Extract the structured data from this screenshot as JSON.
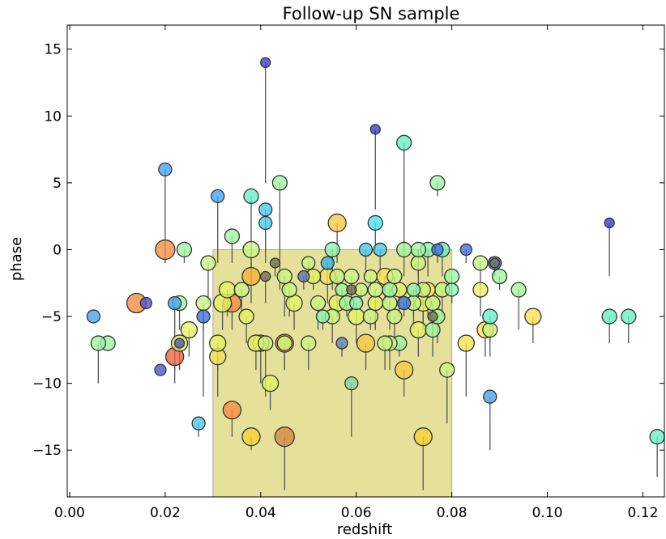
{
  "chart_data": {
    "type": "scatter",
    "title": "Follow-up SN sample",
    "xlabel": "redshift",
    "ylabel": "phase",
    "xlim": [
      -0.0005,
      0.1245
    ],
    "ylim": [
      -18.5,
      16.8
    ],
    "xticks": [
      0.0,
      0.02,
      0.04,
      0.06,
      0.08,
      0.1,
      0.12
    ],
    "xtick_labels": [
      "0.00",
      "0.02",
      "0.04",
      "0.06",
      "0.08",
      "0.10",
      "0.12"
    ],
    "yticks": [
      15,
      10,
      5,
      0,
      -5,
      -10,
      -15
    ],
    "ytick_labels": [
      "15",
      "10",
      "5",
      "0",
      "−5",
      "−10",
      "−15"
    ],
    "grid": false,
    "shaded_region": {
      "x": [
        0.03,
        0.08
      ],
      "y": [
        -18.5,
        0
      ],
      "color": "#e0dc8a"
    },
    "marker_edge_color": "#333333",
    "line_color": "#555555",
    "points": [
      {
        "x": 0.041,
        "y": 14,
        "y_low": 5,
        "r": 6,
        "c": "#3a3ad0"
      },
      {
        "x": 0.064,
        "y": 9,
        "y_low": 3,
        "r": 6,
        "c": "#3a3ad0"
      },
      {
        "x": 0.07,
        "y": 8,
        "y_low": 0,
        "r": 9,
        "c": "#62f0c4"
      },
      {
        "x": 0.02,
        "y": 6,
        "y_low": -1,
        "r": 8,
        "c": "#45a0f0"
      },
      {
        "x": 0.044,
        "y": 5,
        "y_low": -3,
        "r": 9,
        "c": "#9cf59c"
      },
      {
        "x": 0.077,
        "y": 5,
        "y_low": 4,
        "r": 9,
        "c": "#9cf59c"
      },
      {
        "x": 0.031,
        "y": 4,
        "y_low": -1,
        "r": 8,
        "c": "#45a0f0"
      },
      {
        "x": 0.038,
        "y": 4,
        "y_low": -2,
        "r": 9,
        "c": "#62f0c4"
      },
      {
        "x": 0.041,
        "y": 3,
        "y_low": -1,
        "r": 8,
        "c": "#45c8f0"
      },
      {
        "x": 0.041,
        "y": 2,
        "y_low": 0,
        "r": 8,
        "c": "#45c8f0"
      },
      {
        "x": 0.064,
        "y": 2,
        "y_low": 0,
        "r": 9,
        "c": "#45e0f0"
      },
      {
        "x": 0.056,
        "y": 2,
        "y_low": -1,
        "r": 11,
        "c": "#f7c840"
      },
      {
        "x": 0.113,
        "y": 2,
        "y_low": -2,
        "r": 6,
        "c": "#3a3ad0"
      },
      {
        "x": 0.034,
        "y": 1,
        "y_low": -1,
        "r": 9,
        "c": "#9cf59c"
      },
      {
        "x": 0.02,
        "y": 0,
        "y_low": -1,
        "r": 12,
        "c": "#f58a40"
      },
      {
        "x": 0.024,
        "y": 0,
        "y_low": -1,
        "r": 9,
        "c": "#9cf59c"
      },
      {
        "x": 0.038,
        "y": 0,
        "y_low": -2,
        "r": 10,
        "c": "#c9f580"
      },
      {
        "x": 0.055,
        "y": 0,
        "y_low": -3,
        "r": 9,
        "c": "#8af5b0"
      },
      {
        "x": 0.062,
        "y": 0,
        "y_low": -2,
        "r": 8,
        "c": "#45c8f0"
      },
      {
        "x": 0.065,
        "y": 0,
        "y_low": -2,
        "r": 8,
        "c": "#45c8f0"
      },
      {
        "x": 0.07,
        "y": 0,
        "y_low": -2,
        "r": 9,
        "c": "#9cf59c"
      },
      {
        "x": 0.073,
        "y": 0,
        "y_low": -3,
        "r": 9,
        "c": "#9cf59c"
      },
      {
        "x": 0.075,
        "y": 0,
        "y_low": -2,
        "r": 9,
        "c": "#8af5b0"
      },
      {
        "x": 0.077,
        "y": 0,
        "y_low": -1,
        "r": 7,
        "c": "#3a70e0"
      },
      {
        "x": 0.078,
        "y": 0,
        "y_low": -2,
        "r": 9,
        "c": "#62f0c4"
      },
      {
        "x": 0.083,
        "y": 0,
        "y_low": -1,
        "r": 7,
        "c": "#3a70e0"
      },
      {
        "x": 0.029,
        "y": -1,
        "y_low": -4,
        "r": 9,
        "c": "#c9f580"
      },
      {
        "x": 0.043,
        "y": -1,
        "y_low": -2,
        "r": 6,
        "c": "#707050"
      },
      {
        "x": 0.05,
        "y": -1,
        "y_low": -2,
        "r": 8,
        "c": "#c9f580"
      },
      {
        "x": 0.054,
        "y": -1,
        "y_low": -2,
        "r": 8,
        "c": "#2fb5e0"
      },
      {
        "x": 0.073,
        "y": -1,
        "y_low": -2,
        "r": 9,
        "c": "#c9f580"
      },
      {
        "x": 0.086,
        "y": -1,
        "y_low": -3,
        "r": 9,
        "c": "#c9f580"
      },
      {
        "x": 0.089,
        "y": -1,
        "y_low": -2,
        "r": 8,
        "c": "#3a70e0"
      },
      {
        "x": 0.089,
        "y": -1,
        "y_low": -2,
        "r": 6,
        "c": "#707050"
      },
      {
        "x": 0.041,
        "y": -2,
        "y_low": -4,
        "r": 6,
        "c": "#707050"
      },
      {
        "x": 0.038,
        "y": -2,
        "y_low": -4,
        "r": 11,
        "c": "#f7b030"
      },
      {
        "x": 0.045,
        "y": -2,
        "y_low": -5,
        "r": 9,
        "c": "#c9f580"
      },
      {
        "x": 0.049,
        "y": -2,
        "y_low": -3,
        "r": 7,
        "c": "#6070b0"
      },
      {
        "x": 0.051,
        "y": -2,
        "y_low": -3,
        "r": 9,
        "c": "#e6f260"
      },
      {
        "x": 0.054,
        "y": -2,
        "y_low": -4,
        "r": 10,
        "c": "#f7e050"
      },
      {
        "x": 0.056,
        "y": -2,
        "y_low": -4,
        "r": 9,
        "c": "#c9f580"
      },
      {
        "x": 0.059,
        "y": -2,
        "y_low": -4,
        "r": 9,
        "c": "#c9f580"
      },
      {
        "x": 0.063,
        "y": -2,
        "y_low": -3,
        "r": 8,
        "c": "#c9f580"
      },
      {
        "x": 0.066,
        "y": -2,
        "y_low": -4,
        "r": 10,
        "c": "#f7e050"
      },
      {
        "x": 0.068,
        "y": -2,
        "y_low": -3,
        "r": 9,
        "c": "#c9f580"
      },
      {
        "x": 0.08,
        "y": -2,
        "y_low": -4,
        "r": 9,
        "c": "#9cf59c"
      },
      {
        "x": 0.09,
        "y": -2,
        "y_low": -3,
        "r": 9,
        "c": "#9cf59c"
      },
      {
        "x": 0.033,
        "y": -3,
        "y_low": -5,
        "r": 10,
        "c": "#e6f260"
      },
      {
        "x": 0.036,
        "y": -3,
        "y_low": -5,
        "r": 9,
        "c": "#c9f580"
      },
      {
        "x": 0.046,
        "y": -3,
        "y_low": -5,
        "r": 9,
        "c": "#c9f580"
      },
      {
        "x": 0.057,
        "y": -3,
        "y_low": -4,
        "r": 8,
        "c": "#9cf59c"
      },
      {
        "x": 0.059,
        "y": -3,
        "y_low": -4,
        "r": 6,
        "c": "#707050"
      },
      {
        "x": 0.061,
        "y": -3,
        "y_low": -4,
        "r": 8,
        "c": "#c9f580"
      },
      {
        "x": 0.064,
        "y": -3,
        "y_low": -6,
        "r": 9,
        "c": "#c9f580"
      },
      {
        "x": 0.067,
        "y": -3,
        "y_low": -5,
        "r": 9,
        "c": "#9cf59c"
      },
      {
        "x": 0.069,
        "y": -3,
        "y_low": -5,
        "r": 9,
        "c": "#e6f260"
      },
      {
        "x": 0.072,
        "y": -3,
        "y_low": -5,
        "r": 8,
        "c": "#8af5b0"
      },
      {
        "x": 0.074,
        "y": -3,
        "y_low": -6,
        "r": 9,
        "c": "#c9f580"
      },
      {
        "x": 0.075,
        "y": -3,
        "y_low": -5,
        "r": 9,
        "c": "#f7e050"
      },
      {
        "x": 0.078,
        "y": -3,
        "y_low": -5,
        "r": 9,
        "c": "#c9f580"
      },
      {
        "x": 0.08,
        "y": -3,
        "y_low": -4,
        "r": 8,
        "c": "#8af5b0"
      },
      {
        "x": 0.086,
        "y": -3,
        "y_low": -5,
        "r": 9,
        "c": "#e6f260"
      },
      {
        "x": 0.094,
        "y": -3,
        "y_low": -6,
        "r": 9,
        "c": "#9cf59c"
      },
      {
        "x": 0.014,
        "y": -4,
        "y_low": -4,
        "r": 12,
        "c": "#f58a40"
      },
      {
        "x": 0.016,
        "y": -4,
        "y_low": -4,
        "r": 7,
        "c": "#5050d0"
      },
      {
        "x": 0.022,
        "y": -4,
        "y_low": -9,
        "r": 8,
        "c": "#45a0f0"
      },
      {
        "x": 0.023,
        "y": -4,
        "y_low": -6,
        "r": 9,
        "c": "#9cf59c"
      },
      {
        "x": 0.028,
        "y": -4,
        "y_low": -11,
        "r": 9,
        "c": "#c9f580"
      },
      {
        "x": 0.032,
        "y": -4,
        "y_low": -6,
        "r": 11,
        "c": "#e6f260"
      },
      {
        "x": 0.034,
        "y": -4,
        "y_low": -6,
        "r": 11,
        "c": "#f58a40"
      },
      {
        "x": 0.047,
        "y": -4,
        "y_low": -6,
        "r": 10,
        "c": "#e6f260"
      },
      {
        "x": 0.052,
        "y": -4,
        "y_low": -6,
        "r": 9,
        "c": "#c9f580"
      },
      {
        "x": 0.056,
        "y": -4,
        "y_low": -5,
        "r": 10,
        "c": "#e6f260"
      },
      {
        "x": 0.058,
        "y": -4,
        "y_low": -5,
        "r": 9,
        "c": "#9cf59c"
      },
      {
        "x": 0.06,
        "y": -4,
        "y_low": -5,
        "r": 8,
        "c": "#8af5b0"
      },
      {
        "x": 0.064,
        "y": -4,
        "y_low": -6,
        "r": 9,
        "c": "#e6f260"
      },
      {
        "x": 0.067,
        "y": -4,
        "y_low": -6,
        "r": 9,
        "c": "#c9f580"
      },
      {
        "x": 0.07,
        "y": -4,
        "y_low": -5,
        "r": 8,
        "c": "#3a70e0"
      },
      {
        "x": 0.072,
        "y": -4,
        "y_low": -6,
        "r": 9,
        "c": "#c9f580"
      },
      {
        "x": 0.074,
        "y": -4,
        "y_low": -6,
        "r": 10,
        "c": "#e6f260"
      },
      {
        "x": 0.076,
        "y": -4,
        "y_low": -5,
        "r": 9,
        "c": "#c9f580"
      },
      {
        "x": 0.005,
        "y": -5,
        "y_low": -5,
        "r": 8,
        "c": "#45a0f0"
      },
      {
        "x": 0.028,
        "y": -5,
        "y_low": -6,
        "r": 8,
        "c": "#3a70e0"
      },
      {
        "x": 0.037,
        "y": -5,
        "y_low": -7,
        "r": 9,
        "c": "#e6f260"
      },
      {
        "x": 0.053,
        "y": -5,
        "y_low": -6,
        "r": 8,
        "c": "#8af5b0"
      },
      {
        "x": 0.055,
        "y": -5,
        "y_low": -7,
        "r": 9,
        "c": "#c9f580"
      },
      {
        "x": 0.06,
        "y": -5,
        "y_low": -7,
        "r": 10,
        "c": "#e6f260"
      },
      {
        "x": 0.063,
        "y": -5,
        "y_low": -6,
        "r": 9,
        "c": "#c9f580"
      },
      {
        "x": 0.068,
        "y": -5,
        "y_low": -7,
        "r": 9,
        "c": "#c9f580"
      },
      {
        "x": 0.076,
        "y": -5,
        "y_low": -6,
        "r": 6,
        "c": "#707050"
      },
      {
        "x": 0.077,
        "y": -5,
        "y_low": -7,
        "r": 9,
        "c": "#9cf59c"
      },
      {
        "x": 0.088,
        "y": -5,
        "y_low": -7,
        "r": 9,
        "c": "#62f0c4"
      },
      {
        "x": 0.097,
        "y": -5,
        "y_low": -7,
        "r": 10,
        "c": "#f7e050"
      },
      {
        "x": 0.113,
        "y": -5,
        "y_low": -7,
        "r": 9,
        "c": "#62f0c4"
      },
      {
        "x": 0.117,
        "y": -5,
        "y_low": -7,
        "r": 9,
        "c": "#62f0c4"
      },
      {
        "x": 0.025,
        "y": -6,
        "y_low": -8,
        "r": 10,
        "c": "#e6f260"
      },
      {
        "x": 0.073,
        "y": -6,
        "y_low": -8,
        "r": 10,
        "c": "#e6f260"
      },
      {
        "x": 0.076,
        "y": -6,
        "y_low": -8,
        "r": 9,
        "c": "#9cf59c"
      },
      {
        "x": 0.087,
        "y": -6,
        "y_low": -8,
        "r": 10,
        "c": "#f7e050"
      },
      {
        "x": 0.088,
        "y": -6,
        "y_low": -8,
        "r": 9,
        "c": "#c9f580"
      },
      {
        "x": 0.006,
        "y": -7,
        "y_low": -10,
        "r": 9,
        "c": "#9cf59c"
      },
      {
        "x": 0.008,
        "y": -7,
        "y_low": -7,
        "r": 9,
        "c": "#9cf59c"
      },
      {
        "x": 0.023,
        "y": -7,
        "y_low": -9,
        "r": 10,
        "c": "#e6f260"
      },
      {
        "x": 0.023,
        "y": -7,
        "y_low": -9,
        "r": 6,
        "c": "#5050b0"
      },
      {
        "x": 0.031,
        "y": -7,
        "y_low": -9,
        "r": 10,
        "c": "#e6f260"
      },
      {
        "x": 0.039,
        "y": -7,
        "y_low": -9,
        "r": 10,
        "c": "#e6f260"
      },
      {
        "x": 0.04,
        "y": -7,
        "y_low": -10,
        "r": 10,
        "c": "#f7e050"
      },
      {
        "x": 0.041,
        "y": -7,
        "y_low": -11,
        "r": 9,
        "c": "#c9f580"
      },
      {
        "x": 0.045,
        "y": -7,
        "y_low": -9,
        "r": 11,
        "c": "#f7b030"
      },
      {
        "x": 0.045,
        "y": -7,
        "y_low": -9,
        "r": 9,
        "c": "#c9f580"
      },
      {
        "x": 0.05,
        "y": -7,
        "y_low": -9,
        "r": 9,
        "c": "#c9f580"
      },
      {
        "x": 0.057,
        "y": -7,
        "y_low": -8,
        "r": 7,
        "c": "#6080c0"
      },
      {
        "x": 0.062,
        "y": -7,
        "y_low": -9,
        "r": 11,
        "c": "#f7c840"
      },
      {
        "x": 0.066,
        "y": -7,
        "y_low": -9,
        "r": 9,
        "c": "#c9f580"
      },
      {
        "x": 0.067,
        "y": -7,
        "y_low": -9,
        "r": 9,
        "c": "#c9f580"
      },
      {
        "x": 0.069,
        "y": -7,
        "y_low": -8,
        "r": 9,
        "c": "#9cf59c"
      },
      {
        "x": 0.083,
        "y": -7,
        "y_low": -11,
        "r": 10,
        "c": "#f7e050"
      },
      {
        "x": 0.022,
        "y": -8,
        "y_low": -10,
        "r": 11,
        "c": "#f06040"
      },
      {
        "x": 0.031,
        "y": -8,
        "y_low": -11,
        "r": 10,
        "c": "#f7e050"
      },
      {
        "x": 0.019,
        "y": -9,
        "y_low": -9,
        "r": 7,
        "c": "#5050d0"
      },
      {
        "x": 0.07,
        "y": -9,
        "y_low": -11,
        "r": 11,
        "c": "#f7c840"
      },
      {
        "x": 0.079,
        "y": -9,
        "y_low": -13,
        "r": 9,
        "c": "#c9f580"
      },
      {
        "x": 0.042,
        "y": -10,
        "y_low": -12,
        "r": 10,
        "c": "#e6f260"
      },
      {
        "x": 0.059,
        "y": -10,
        "y_low": -14,
        "r": 8,
        "c": "#8ad0a0"
      },
      {
        "x": 0.088,
        "y": -11,
        "y_low": -15,
        "r": 8,
        "c": "#45a0f0"
      },
      {
        "x": 0.034,
        "y": -12,
        "y_low": -14,
        "r": 11,
        "c": "#f58a40"
      },
      {
        "x": 0.027,
        "y": -13,
        "y_low": -14,
        "r": 8,
        "c": "#45c8f0"
      },
      {
        "x": 0.038,
        "y": -14,
        "y_low": -15,
        "r": 11,
        "c": "#f7d030"
      },
      {
        "x": 0.045,
        "y": -14,
        "y_low": -18,
        "r": 12,
        "c": "#d08840"
      },
      {
        "x": 0.074,
        "y": -14,
        "y_low": -18,
        "r": 11,
        "c": "#f7d030"
      },
      {
        "x": 0.123,
        "y": -14,
        "y_low": -17,
        "r": 9,
        "c": "#62f0c4"
      }
    ]
  }
}
